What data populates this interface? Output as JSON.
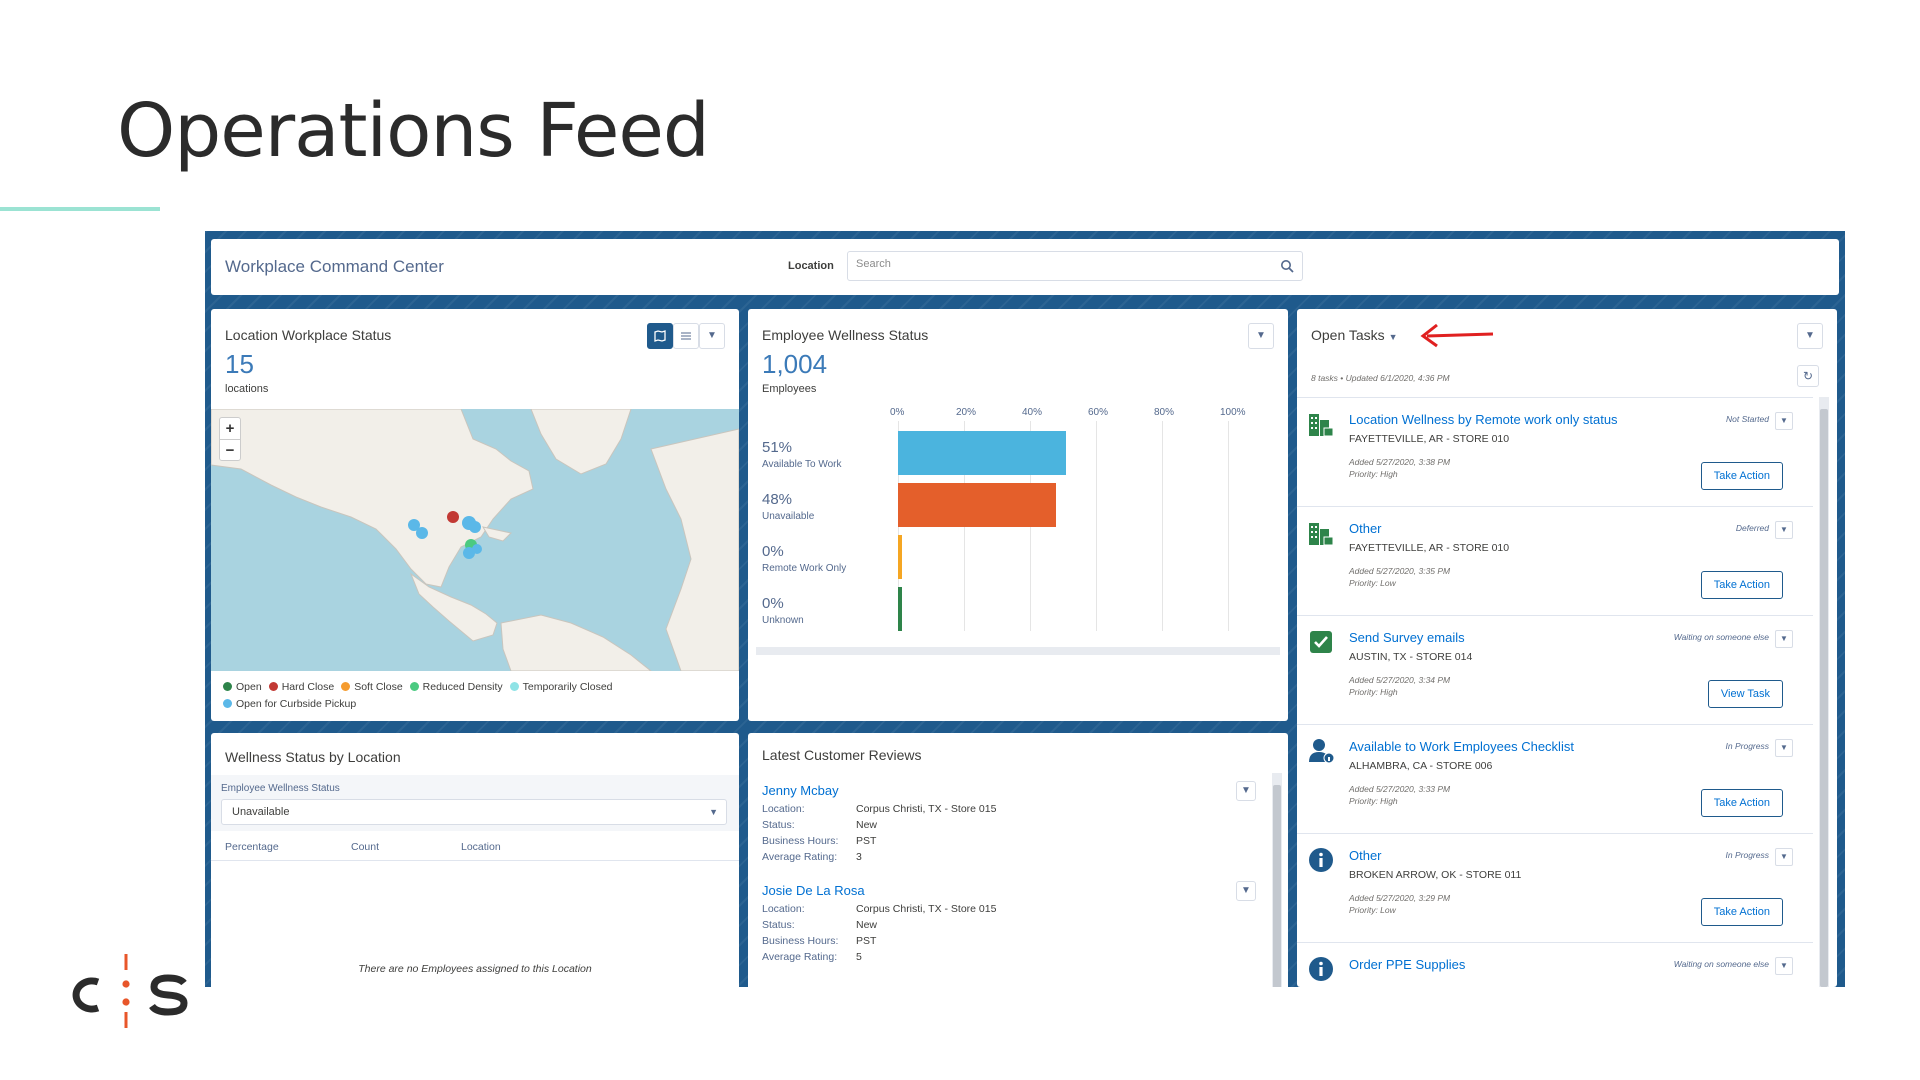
{
  "slide": {
    "title": "Operations Feed"
  },
  "app": {
    "title": "Workplace Command Center",
    "location_label": "Location",
    "search_placeholder": "Search"
  },
  "location_status": {
    "title": "Location Workplace Status",
    "count": "15",
    "count_label": "locations",
    "legend": [
      {
        "label": "Open",
        "color": "#2e844a"
      },
      {
        "label": "Hard Close",
        "color": "#c23934"
      },
      {
        "label": "Soft Close",
        "color": "#f59c2f"
      },
      {
        "label": "Reduced Density",
        "color": "#4bca81"
      },
      {
        "label": "Temporarily Closed",
        "color": "#8fe3e6"
      },
      {
        "label": "Open for Curbside Pickup",
        "color": "#5bb8e8"
      }
    ]
  },
  "wellness_status": {
    "title": "Employee Wellness Status",
    "count": "1,004",
    "count_label": "Employees",
    "chart_data": {
      "type": "bar",
      "orientation": "horizontal",
      "x_ticks": [
        "0%",
        "20%",
        "40%",
        "60%",
        "80%",
        "100%"
      ],
      "xlim": [
        0,
        100
      ],
      "categories": [
        "Available To Work",
        "Unavailable",
        "Remote Work Only",
        "Unknown"
      ],
      "values": [
        51,
        48,
        0,
        0
      ],
      "value_labels": [
        "51%",
        "48%",
        "0%",
        "0%"
      ],
      "colors": [
        "#4bb4de",
        "#e45f2b",
        "#f5a623",
        "#2e844a"
      ]
    }
  },
  "open_tasks": {
    "title": "Open Tasks",
    "summary": "8 tasks • Updated 6/1/2020, 4:36 PM",
    "tasks": [
      {
        "title": "Location Wellness by Remote work only status",
        "location": "FAYETTEVILLE, AR - STORE 010",
        "added": "Added 5/27/2020, 3:38 PM",
        "priority": "Priority: High",
        "status": "Not Started",
        "action": "Take Action",
        "icon": "building-icon"
      },
      {
        "title": "Other",
        "location": "FAYETTEVILLE, AR - STORE 010",
        "added": "Added 5/27/2020, 3:35 PM",
        "priority": "Priority: Low",
        "status": "Deferred",
        "action": "Take Action",
        "icon": "building-icon"
      },
      {
        "title": "Send Survey emails",
        "location": "AUSTIN, TX - STORE 014",
        "added": "Added 5/27/2020, 3:34 PM",
        "priority": "Priority: High",
        "status": "Waiting on someone else",
        "action": "View Task",
        "icon": "task-check-icon"
      },
      {
        "title": "Available to Work Employees Checklist",
        "location": "ALHAMBRA, CA - STORE 006",
        "added": "Added 5/27/2020, 3:33 PM",
        "priority": "Priority: High",
        "status": "In Progress",
        "action": "Take Action",
        "icon": "user-info-icon"
      },
      {
        "title": "Other",
        "location": "BROKEN ARROW, OK - STORE 011",
        "added": "Added 5/27/2020, 3:29 PM",
        "priority": "Priority: Low",
        "status": "In Progress",
        "action": "Take Action",
        "icon": "info-icon"
      },
      {
        "title": "Order PPE Supplies",
        "status": "Waiting on someone else",
        "icon": "info-icon"
      }
    ]
  },
  "wellness_by_location": {
    "title": "Wellness Status by Location",
    "filter_label": "Employee Wellness Status",
    "filter_value": "Unavailable",
    "columns": [
      "Percentage",
      "Count",
      "Location"
    ],
    "empty_message": "There are no Employees assigned to this Location"
  },
  "reviews": {
    "title": "Latest Customer Reviews",
    "keys": {
      "location": "Location:",
      "status": "Status:",
      "hours": "Business Hours:",
      "rating": "Average Rating:"
    },
    "items": [
      {
        "name": "Jenny Mcbay",
        "location": "Corpus Christi, TX - Store 015",
        "status": "New",
        "hours": "PST",
        "rating": "3"
      },
      {
        "name": "Josie De La Rosa",
        "location": "Corpus Christi, TX - Store 015",
        "status": "New",
        "hours": "PST",
        "rating": "5"
      }
    ]
  },
  "logo": {
    "text": "CIS",
    "accent": "#e8562a"
  }
}
